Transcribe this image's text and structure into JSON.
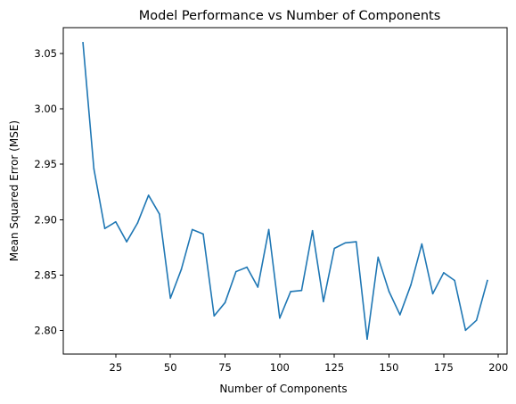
{
  "chart_data": {
    "type": "line",
    "title": "Model Performance vs Number of Components",
    "xlabel": "Number of Components",
    "ylabel": "Mean Squared Error (MSE)",
    "xlim": [
      1,
      204
    ],
    "ylim": [
      2.7785,
      3.0735
    ],
    "xticks": [
      25,
      50,
      75,
      100,
      125,
      150,
      175,
      200
    ],
    "yticks": [
      2.8,
      2.85,
      2.9,
      2.95,
      3.0,
      3.05
    ],
    "xtick_labels": [
      "25",
      "50",
      "75",
      "100",
      "125",
      "150",
      "175",
      "200"
    ],
    "ytick_labels": [
      "2.80",
      "2.85",
      "2.90",
      "2.95",
      "3.00",
      "3.05"
    ],
    "grid": false,
    "series": [
      {
        "color": "#1f77b4",
        "x": [
          10,
          15,
          20,
          25,
          30,
          35,
          40,
          45,
          50,
          55,
          60,
          65,
          70,
          75,
          80,
          85,
          90,
          95,
          100,
          105,
          110,
          115,
          120,
          125,
          130,
          135,
          140,
          145,
          150,
          155,
          160,
          165,
          170,
          175,
          180,
          185,
          190,
          195
        ],
        "y": [
          3.06,
          2.946,
          2.892,
          2.898,
          2.88,
          2.897,
          2.922,
          2.905,
          2.829,
          2.855,
          2.891,
          2.887,
          2.813,
          2.825,
          2.853,
          2.857,
          2.839,
          2.891,
          2.811,
          2.835,
          2.836,
          2.89,
          2.826,
          2.874,
          2.879,
          2.88,
          2.792,
          2.866,
          2.835,
          2.814,
          2.841,
          2.878,
          2.833,
          2.852,
          2.845,
          2.8,
          2.809,
          2.845
        ]
      }
    ]
  }
}
